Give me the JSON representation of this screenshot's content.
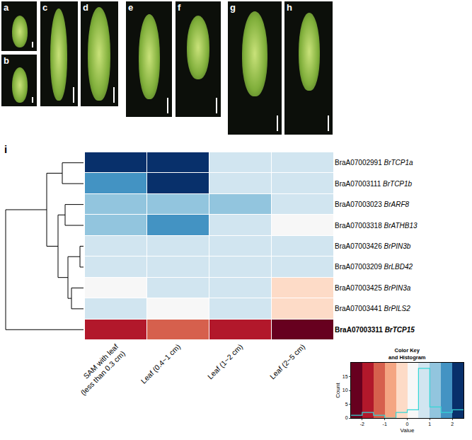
{
  "panels": [
    {
      "label": "a"
    },
    {
      "label": "b"
    },
    {
      "label": "c"
    },
    {
      "label": "d"
    },
    {
      "label": "e"
    },
    {
      "label": "f"
    },
    {
      "label": "g"
    },
    {
      "label": "h"
    }
  ],
  "chart_data": {
    "type": "heatmap",
    "label": "i",
    "columns": [
      [
        "SAM with leaf",
        "(less than 0.3 cm)"
      ],
      [
        "Leaf (0.4~1 cm)"
      ],
      [
        "Leaf (1~2 cm)"
      ],
      [
        "Leaf (2~5 cm)"
      ]
    ],
    "rows": [
      {
        "id": "BraA07002991",
        "name": "BrTCP1a"
      },
      {
        "id": "BraA07003111",
        "name": "BrTCP1b"
      },
      {
        "id": "BraA07003023",
        "name": "BrARF8"
      },
      {
        "id": "BraA07003318",
        "name": "BrATHB13"
      },
      {
        "id": "BraA07003426",
        "name": "BrPIN3b"
      },
      {
        "id": "BraA07003209",
        "name": "BrLBD42"
      },
      {
        "id": "BraA07003425",
        "name": "BrPIN3a"
      },
      {
        "id": "BraA07003441",
        "name": "BrPILS2"
      },
      {
        "id": "BraA07003311",
        "name": "BrTCP15"
      }
    ],
    "values": [
      [
        2.3,
        2.3,
        0.5,
        0.5
      ],
      [
        1.8,
        2.3,
        0.5,
        0.5
      ],
      [
        1.0,
        1.0,
        1.2,
        0.5
      ],
      [
        1.0,
        1.6,
        0.5,
        0.0
      ],
      [
        0.5,
        0.5,
        0.5,
        0.5
      ],
      [
        0.5,
        0.5,
        0.5,
        0.5
      ],
      [
        0.0,
        0.5,
        0.5,
        -0.3
      ],
      [
        0.5,
        0.0,
        0.5,
        -0.3
      ],
      [
        -1.8,
        -1.3,
        -1.8,
        -2.3
      ]
    ],
    "zlim": [
      -2.5,
      2.5
    ],
    "color_key": {
      "title": [
        "Color Key",
        "and Histogram"
      ],
      "xlabel": "Value",
      "ylabel": "Count",
      "xlim": [
        -2.5,
        2.5
      ],
      "xticks": [
        -2,
        -1,
        0,
        1,
        2
      ],
      "ylim": [
        0,
        20
      ],
      "yticks": [
        0,
        5,
        10,
        15
      ],
      "bins": [
        -2.5,
        -2,
        -1.5,
        -1,
        -0.5,
        0,
        0.5,
        1,
        1.5,
        2,
        2.5
      ],
      "counts": [
        1,
        2,
        1,
        0,
        2,
        3,
        18,
        4,
        2,
        3
      ]
    }
  }
}
